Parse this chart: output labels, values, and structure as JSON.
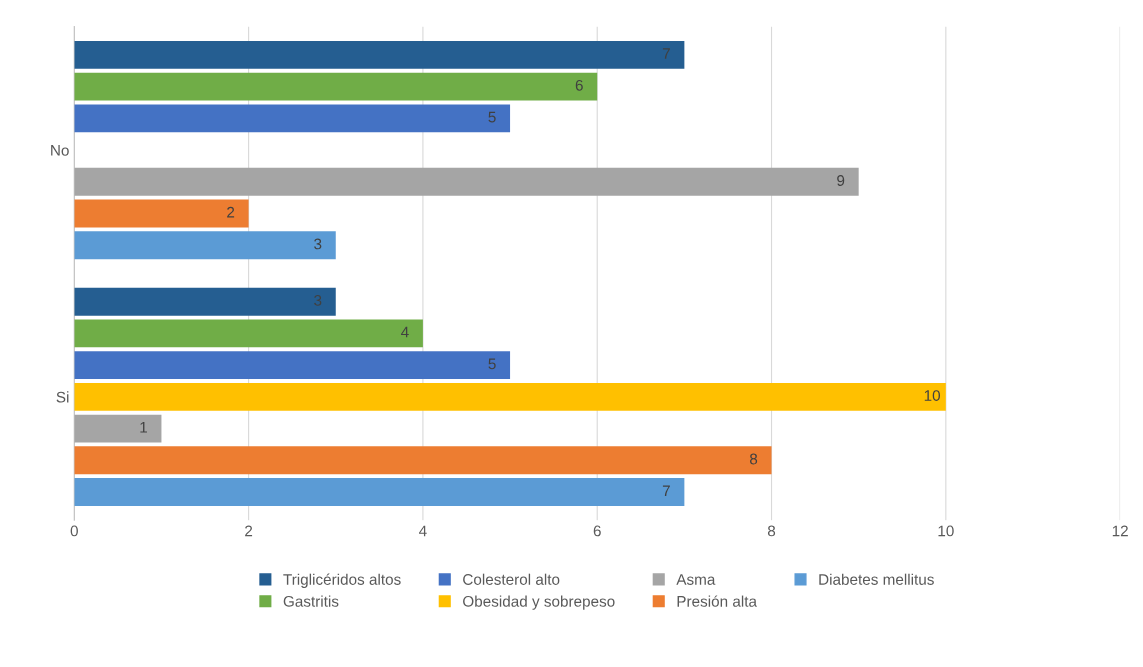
{
  "chart_data": {
    "type": "bar",
    "orientation": "horizontal",
    "categories": [
      "No",
      "Si"
    ],
    "series": [
      {
        "name": "Triglicéridos altos",
        "color": "#255e91",
        "values": [
          7,
          3
        ]
      },
      {
        "name": "Gastritis",
        "color": "#70ad47",
        "values": [
          6,
          4
        ]
      },
      {
        "name": "Colesterol alto",
        "color": "#4472c4",
        "values": [
          5,
          5
        ]
      },
      {
        "name": "Obesidad y sobrepeso",
        "color": "#ffc000",
        "values": [
          null,
          10
        ]
      },
      {
        "name": "Asma",
        "color": "#a5a5a5",
        "values": [
          9,
          1
        ]
      },
      {
        "name": "Presión alta",
        "color": "#ed7d31",
        "values": [
          2,
          8
        ]
      },
      {
        "name": "Diabetes mellitus",
        "color": "#5b9bd5",
        "values": [
          3,
          7
        ]
      }
    ],
    "xlim": [
      0,
      12
    ],
    "xticks": [
      0,
      2,
      4,
      6,
      8,
      10,
      12
    ],
    "grid": "x",
    "legend": "bottom",
    "data_labels": true
  }
}
